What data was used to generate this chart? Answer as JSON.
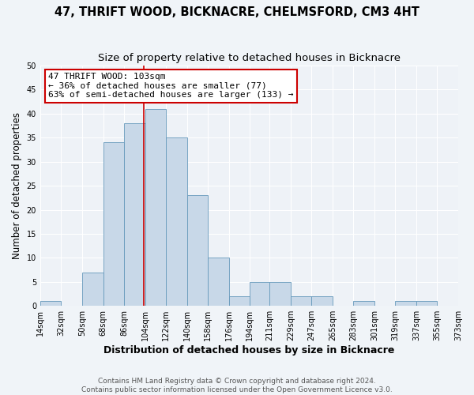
{
  "title": "47, THRIFT WOOD, BICKNACRE, CHELMSFORD, CM3 4HT",
  "subtitle": "Size of property relative to detached houses in Bicknacre",
  "xlabel": "Distribution of detached houses by size in Bicknacre",
  "ylabel": "Number of detached properties",
  "bar_color": "#c8d8e8",
  "bar_edge_color": "#6699bb",
  "background_color": "#eef2f7",
  "grid_color": "#ffffff",
  "bin_edges": [
    14,
    32,
    50,
    68,
    86,
    104,
    122,
    140,
    158,
    176,
    194,
    211,
    229,
    247,
    265,
    283,
    301,
    319,
    337,
    355,
    373
  ],
  "bin_labels": [
    "14sqm",
    "32sqm",
    "50sqm",
    "68sqm",
    "86sqm",
    "104sqm",
    "122sqm",
    "140sqm",
    "158sqm",
    "176sqm",
    "194sqm",
    "211sqm",
    "229sqm",
    "247sqm",
    "265sqm",
    "283sqm",
    "301sqm",
    "319sqm",
    "337sqm",
    "355sqm",
    "373sqm"
  ],
  "counts": [
    1,
    0,
    7,
    34,
    38,
    41,
    35,
    23,
    10,
    2,
    5,
    5,
    2,
    2,
    0,
    1,
    0,
    1,
    1,
    0
  ],
  "ylim": [
    0,
    50
  ],
  "property_value": 103,
  "property_line_color": "#cc0000",
  "annotation_line1": "47 THRIFT WOOD: 103sqm",
  "annotation_line2": "← 36% of detached houses are smaller (77)",
  "annotation_line3": "63% of semi-detached houses are larger (133) →",
  "annotation_box_color": "#ffffff",
  "annotation_box_edge_color": "#cc0000",
  "footer_text": "Contains HM Land Registry data © Crown copyright and database right 2024.\nContains public sector information licensed under the Open Government Licence v3.0.",
  "title_fontsize": 10.5,
  "subtitle_fontsize": 9.5,
  "xlabel_fontsize": 9,
  "ylabel_fontsize": 8.5,
  "tick_fontsize": 7,
  "annotation_fontsize": 8,
  "footer_fontsize": 6.5,
  "fig_width": 6.0,
  "fig_height": 5.0,
  "fig_dpi": 100
}
